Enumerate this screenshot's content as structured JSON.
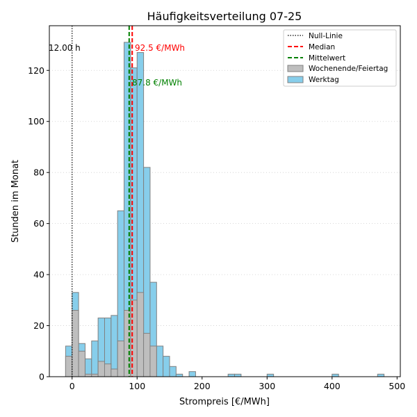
{
  "chart_data": {
    "type": "bar",
    "title": "Häufigkeitsverteilung 07-25",
    "xlabel": "Strompreis [€/MWh]",
    "ylabel": "Stunden im Monat",
    "xlim": [
      -35,
      505
    ],
    "ylim": [
      0,
      137.5
    ],
    "x_ticks": [
      0,
      100,
      200,
      300,
      400,
      500
    ],
    "y_ticks": [
      0,
      20,
      40,
      60,
      80,
      100,
      120
    ],
    "grid": "horizontal dotted",
    "legend_position": "top-right",
    "bin_width": 10,
    "bin_starts": [
      -10,
      0,
      10,
      20,
      30,
      40,
      50,
      60,
      70,
      80,
      90,
      100,
      110,
      120,
      130,
      140,
      150,
      160,
      180,
      240,
      250,
      300,
      400,
      470
    ],
    "series": [
      {
        "name": "Werktag",
        "color": "#87ceeb",
        "values": [
          12,
          33,
          13,
          7,
          14,
          23,
          23,
          24,
          65,
          131,
          121,
          127,
          82,
          37,
          12,
          8,
          4,
          1,
          2,
          1,
          1,
          1,
          1,
          1
        ]
      },
      {
        "name": "Wochenende/Feiertag",
        "color": "#bebebe",
        "values": [
          8,
          26,
          10,
          1,
          1,
          6,
          5,
          3,
          14,
          26,
          30,
          33,
          17,
          12,
          0,
          0,
          0,
          0,
          0,
          0,
          0,
          0,
          0,
          0
        ]
      }
    ],
    "reference_lines": {
      "zero": {
        "name": "Null-Linie",
        "x": 0,
        "label": "12.00 h",
        "color": "#000000"
      },
      "median": {
        "name": "Median",
        "x": 92.5,
        "label": "92.5 €/MWh",
        "color": "#ff0000"
      },
      "mean": {
        "name": "Mittelwert",
        "x": 87.8,
        "label": "87.8 €/MWh",
        "color": "#008000"
      }
    },
    "legend": [
      "Null-Linie",
      "Median",
      "Mittelwert",
      "Wochenende/Feiertag",
      "Werktag"
    ]
  }
}
